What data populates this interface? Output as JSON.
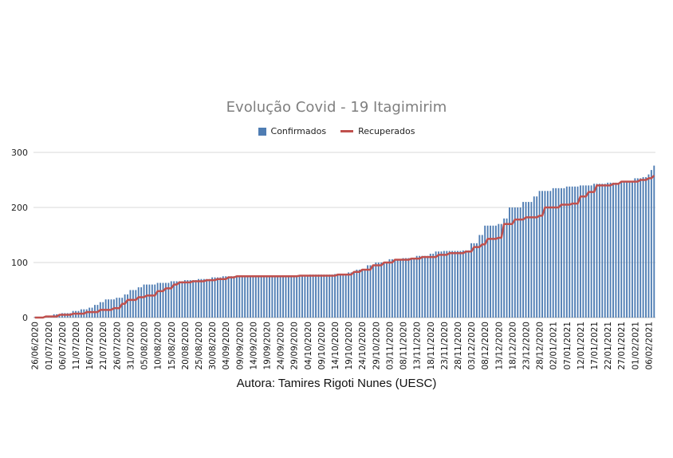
{
  "chart_data": {
    "type": "bar",
    "title": "Evolução Covid - 19 Itagimirim",
    "credit": "Autora: Tamires Rigoti Nunes (UESC)",
    "start_date": "2020-06-26",
    "end_date": "2021-02-08",
    "x_tick_labels": [
      "26/06/2020",
      "01/07/2020",
      "06/07/2020",
      "11/07/2020",
      "16/07/2020",
      "21/07/2020",
      "26/07/2020",
      "31/07/2020",
      "05/08/2020",
      "10/08/2020",
      "15/08/2020",
      "20/08/2020",
      "25/08/2020",
      "30/08/2020",
      "04/09/2020",
      "09/09/2020",
      "14/09/2020",
      "19/09/2020",
      "24/09/2020",
      "29/09/2020",
      "04/10/2020",
      "09/10/2020",
      "14/10/2020",
      "19/10/2020",
      "24/10/2020",
      "29/10/2020",
      "03/11/2020",
      "08/11/2020",
      "13/11/2020",
      "18/11/2020",
      "23/11/2020",
      "28/11/2020",
      "03/12/2020",
      "08/12/2020",
      "13/12/2020",
      "18/12/2020",
      "23/12/2020",
      "28/12/2020",
      "02/01/2021",
      "07/01/2021",
      "12/01/2021",
      "17/01/2021",
      "22/01/2021",
      "27/01/2021",
      "01/02/2021",
      "06/02/2021"
    ],
    "y_ticks": [
      0,
      100,
      200,
      300
    ],
    "ylim": [
      0,
      300
    ],
    "legend_placement": "top-center",
    "grid": true,
    "series": [
      {
        "name": "Confirmados",
        "type": "bar",
        "color": "#4f7db3",
        "points": [
          [
            "2020-06-26",
            1
          ],
          [
            "2020-06-30",
            3
          ],
          [
            "2020-07-03",
            6
          ],
          [
            "2020-07-06",
            8
          ],
          [
            "2020-07-10",
            12
          ],
          [
            "2020-07-13",
            15
          ],
          [
            "2020-07-16",
            18
          ],
          [
            "2020-07-18",
            23
          ],
          [
            "2020-07-20",
            28
          ],
          [
            "2020-07-22",
            33
          ],
          [
            "2020-07-26",
            36
          ],
          [
            "2020-07-29",
            42
          ],
          [
            "2020-07-31",
            50
          ],
          [
            "2020-08-03",
            55
          ],
          [
            "2020-08-05",
            60
          ],
          [
            "2020-08-10",
            63
          ],
          [
            "2020-08-15",
            66
          ],
          [
            "2020-08-20",
            68
          ],
          [
            "2020-08-25",
            70
          ],
          [
            "2020-08-30",
            73
          ],
          [
            "2020-09-03",
            75
          ],
          [
            "2020-09-08",
            76
          ],
          [
            "2020-09-20",
            76
          ],
          [
            "2020-10-01",
            77
          ],
          [
            "2020-10-05",
            78
          ],
          [
            "2020-10-14",
            79
          ],
          [
            "2020-10-19",
            82
          ],
          [
            "2020-10-22",
            87
          ],
          [
            "2020-10-26",
            95
          ],
          [
            "2020-10-29",
            100
          ],
          [
            "2020-11-03",
            106
          ],
          [
            "2020-11-08",
            108
          ],
          [
            "2020-11-13",
            112
          ],
          [
            "2020-11-18",
            116
          ],
          [
            "2020-11-20",
            120
          ],
          [
            "2020-11-23",
            121
          ],
          [
            "2020-11-30",
            122
          ],
          [
            "2020-12-03",
            135
          ],
          [
            "2020-12-06",
            150
          ],
          [
            "2020-12-08",
            167
          ],
          [
            "2020-12-13",
            170
          ],
          [
            "2020-12-15",
            180
          ],
          [
            "2020-12-17",
            200
          ],
          [
            "2020-12-22",
            210
          ],
          [
            "2020-12-26",
            220
          ],
          [
            "2020-12-28",
            230
          ],
          [
            "2021-01-02",
            235
          ],
          [
            "2021-01-07",
            238
          ],
          [
            "2021-01-12",
            240
          ],
          [
            "2021-01-17",
            243
          ],
          [
            "2021-01-22",
            245
          ],
          [
            "2021-01-27",
            248
          ],
          [
            "2021-02-01",
            253
          ],
          [
            "2021-02-04",
            255
          ],
          [
            "2021-02-06",
            260
          ],
          [
            "2021-02-07",
            268
          ],
          [
            "2021-02-08",
            276
          ]
        ]
      },
      {
        "name": "Recuperados",
        "type": "line",
        "color": "#c0504d",
        "points": [
          [
            "2020-06-26",
            0
          ],
          [
            "2020-06-30",
            2
          ],
          [
            "2020-07-05",
            5
          ],
          [
            "2020-07-10",
            7
          ],
          [
            "2020-07-15",
            10
          ],
          [
            "2020-07-20",
            14
          ],
          [
            "2020-07-25",
            17
          ],
          [
            "2020-07-28",
            25
          ],
          [
            "2020-07-30",
            32
          ],
          [
            "2020-08-03",
            37
          ],
          [
            "2020-08-06",
            40
          ],
          [
            "2020-08-10",
            48
          ],
          [
            "2020-08-13",
            53
          ],
          [
            "2020-08-16",
            60
          ],
          [
            "2020-08-18",
            64
          ],
          [
            "2020-08-23",
            66
          ],
          [
            "2020-08-28",
            68
          ],
          [
            "2020-09-01",
            70
          ],
          [
            "2020-09-05",
            73
          ],
          [
            "2020-09-08",
            75
          ],
          [
            "2020-09-30",
            75
          ],
          [
            "2020-10-01",
            76
          ],
          [
            "2020-10-15",
            78
          ],
          [
            "2020-10-21",
            83
          ],
          [
            "2020-10-24",
            87
          ],
          [
            "2020-10-28",
            95
          ],
          [
            "2020-11-01",
            100
          ],
          [
            "2020-11-05",
            105
          ],
          [
            "2020-11-11",
            107
          ],
          [
            "2020-11-15",
            110
          ],
          [
            "2020-11-21",
            114
          ],
          [
            "2020-11-25",
            117
          ],
          [
            "2020-12-01",
            120
          ],
          [
            "2020-12-04",
            128
          ],
          [
            "2020-12-07",
            133
          ],
          [
            "2020-12-09",
            143
          ],
          [
            "2020-12-13",
            145
          ],
          [
            "2020-12-15",
            170
          ],
          [
            "2020-12-19",
            178
          ],
          [
            "2020-12-23",
            182
          ],
          [
            "2020-12-28",
            185
          ],
          [
            "2020-12-30",
            200
          ],
          [
            "2021-01-05",
            205
          ],
          [
            "2021-01-09",
            207
          ],
          [
            "2021-01-12",
            220
          ],
          [
            "2021-01-15",
            228
          ],
          [
            "2021-01-18",
            240
          ],
          [
            "2021-01-24",
            243
          ],
          [
            "2021-01-27",
            247
          ],
          [
            "2021-02-03",
            250
          ],
          [
            "2021-02-06",
            253
          ],
          [
            "2021-02-08",
            258
          ]
        ]
      }
    ]
  }
}
